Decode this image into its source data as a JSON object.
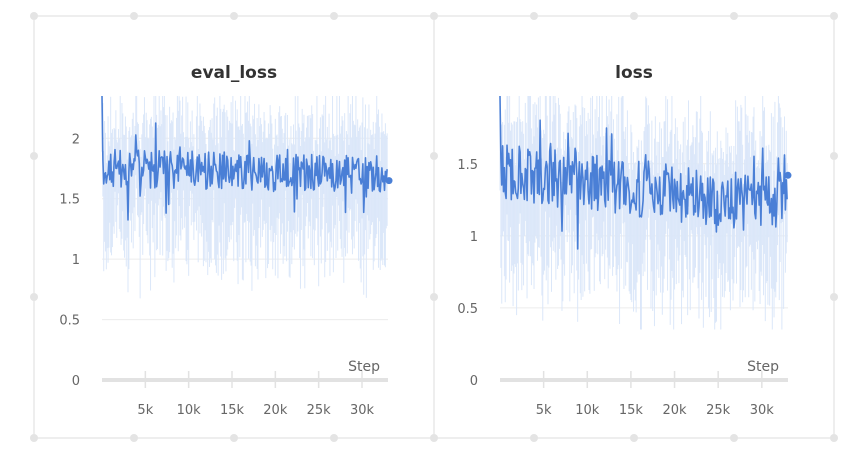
{
  "colors": {
    "series_main": "#4a7fd6",
    "series_raw": "#dbe7f9",
    "marker": "#4a7fd6"
  },
  "chart_data": [
    {
      "type": "line",
      "title": "eval_loss",
      "xlabel": "Step",
      "ylabel": "",
      "xlim": [
        0,
        33000
      ],
      "ylim": [
        0,
        2.35
      ],
      "x_ticks": [
        5000,
        10000,
        15000,
        20000,
        25000,
        30000
      ],
      "x_tick_labels": [
        "5k",
        "10k",
        "15k",
        "20k",
        "25k",
        "30k"
      ],
      "y_ticks": [
        0,
        0.5,
        1,
        1.5,
        2
      ],
      "y_tick_labels": [
        "0",
        "0.5",
        "1",
        "1.5",
        "2"
      ],
      "grid": true,
      "smoothed_series": {
        "points": 330,
        "x_end": 32900,
        "mean": 1.75,
        "trend_end": 1.7,
        "amplitude": 0.16,
        "seed": 11,
        "start_spike": 2.35
      },
      "raw_series": {
        "min": 0.65,
        "max": 2.35
      },
      "last_value": 1.65
    },
    {
      "type": "line",
      "title": "loss",
      "xlabel": "Step",
      "ylabel": "",
      "xlim": [
        0,
        33000
      ],
      "ylim": [
        0,
        1.97
      ],
      "x_ticks": [
        5000,
        10000,
        15000,
        20000,
        25000,
        30000
      ],
      "x_tick_labels": [
        "5k",
        "10k",
        "15k",
        "20k",
        "25k",
        "30k"
      ],
      "y_ticks": [
        0,
        0.5,
        1,
        1.5
      ],
      "y_tick_labels": [
        "0",
        "0.5",
        "1",
        "1.5"
      ],
      "grid": true,
      "smoothed_series": {
        "points": 330,
        "x_end": 32900,
        "mean": 1.45,
        "trend_end": 1.2,
        "amplitude": 0.2,
        "seed": 29,
        "start_spike": 1.97
      },
      "raw_series": {
        "min": 0.35,
        "max": 1.97
      },
      "last_value": 1.42
    }
  ]
}
